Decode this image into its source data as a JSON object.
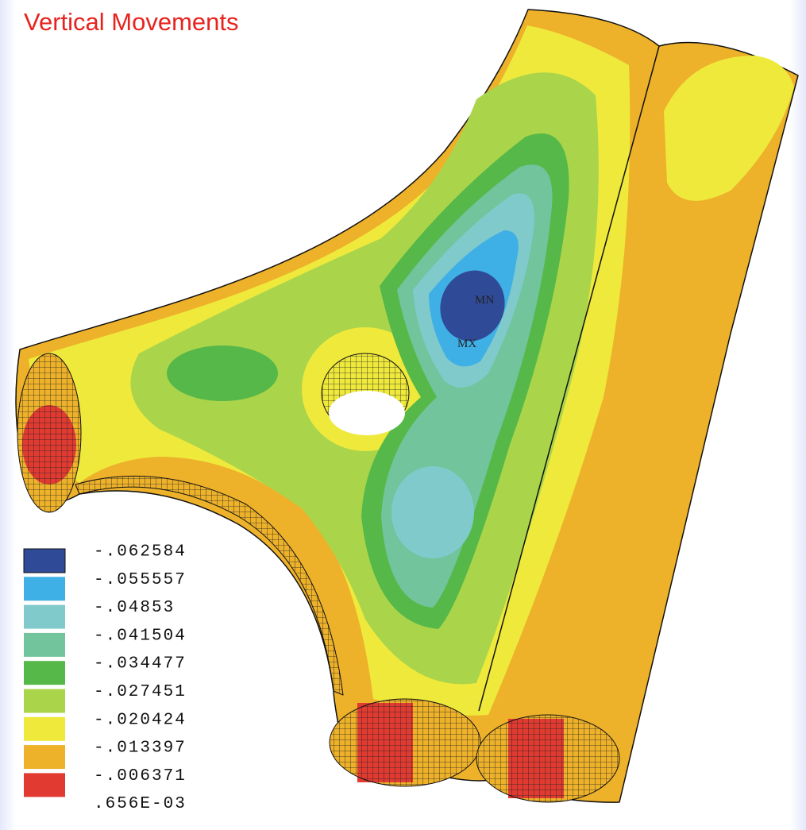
{
  "title": "Vertical Movements",
  "markers": {
    "min": "MN",
    "max": "MX"
  },
  "legend": {
    "items": [
      {
        "label": "-.062584",
        "color": "#2f4a96"
      },
      {
        "label": "-.055557",
        "color": "#3fb0e6"
      },
      {
        "label": "-.04853",
        "color": "#80cacc"
      },
      {
        "label": "-.041504",
        "color": "#72c49c"
      },
      {
        "label": "-.034477",
        "color": "#56b848"
      },
      {
        "label": "-.027451",
        "color": "#aad54b"
      },
      {
        "label": "-.020424",
        "color": "#efe93c"
      },
      {
        "label": "-.013397",
        "color": "#edb12a"
      },
      {
        "label": "-.006371",
        "color": "#e03a31"
      },
      {
        "label": ".656E-03",
        "color": null
      }
    ]
  }
}
